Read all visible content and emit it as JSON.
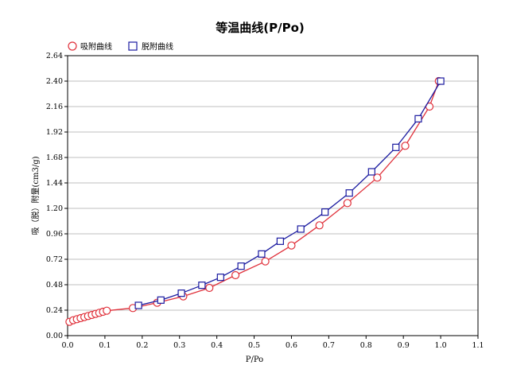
{
  "chart_data": {
    "type": "line",
    "title": "等温曲线(P/Po)",
    "xlabel": "P/Po",
    "ylabel": "吸（脱）附量(cm3/g)",
    "xlim": [
      0.0,
      1.1
    ],
    "ylim": [
      0.0,
      2.64
    ],
    "x_ticks": [
      "0.0",
      "0.1",
      "0.2",
      "0.3",
      "0.4",
      "0.5",
      "0.6",
      "0.7",
      "0.8",
      "0.9",
      "1.0",
      "1.1"
    ],
    "x_tick_values": [
      0.0,
      0.1,
      0.2,
      0.3,
      0.4,
      0.5,
      0.6,
      0.7,
      0.8,
      0.9,
      1.0,
      1.1
    ],
    "y_ticks": [
      "0.00",
      "0.24",
      "0.48",
      "0.72",
      "0.96",
      "1.20",
      "1.44",
      "1.68",
      "1.92",
      "2.16",
      "2.40",
      "2.64"
    ],
    "y_tick_values": [
      0.0,
      0.24,
      0.48,
      0.72,
      0.96,
      1.2,
      1.44,
      1.68,
      1.92,
      2.16,
      2.4,
      2.64
    ],
    "grid": true,
    "legend_position": "top-left",
    "series": [
      {
        "name": "吸附曲线",
        "color": "#e0303a",
        "marker": "circle",
        "points": [
          [
            0.005,
            0.13
          ],
          [
            0.015,
            0.145
          ],
          [
            0.025,
            0.155
          ],
          [
            0.035,
            0.165
          ],
          [
            0.045,
            0.175
          ],
          [
            0.055,
            0.185
          ],
          [
            0.065,
            0.195
          ],
          [
            0.075,
            0.205
          ],
          [
            0.085,
            0.215
          ],
          [
            0.095,
            0.225
          ],
          [
            0.105,
            0.235
          ],
          [
            0.175,
            0.26
          ],
          [
            0.24,
            0.31
          ],
          [
            0.31,
            0.37
          ],
          [
            0.38,
            0.45
          ],
          [
            0.45,
            0.57
          ],
          [
            0.53,
            0.7
          ],
          [
            0.6,
            0.85
          ],
          [
            0.675,
            1.04
          ],
          [
            0.75,
            1.25
          ],
          [
            0.83,
            1.49
          ],
          [
            0.905,
            1.79
          ],
          [
            0.97,
            2.16
          ],
          [
            0.995,
            2.4
          ]
        ]
      },
      {
        "name": "脱附曲线",
        "color": "#1a1aa0",
        "marker": "square",
        "points": [
          [
            0.19,
            0.285
          ],
          [
            0.25,
            0.335
          ],
          [
            0.305,
            0.4
          ],
          [
            0.36,
            0.475
          ],
          [
            0.41,
            0.55
          ],
          [
            0.465,
            0.655
          ],
          [
            0.52,
            0.77
          ],
          [
            0.57,
            0.89
          ],
          [
            0.625,
            1.005
          ],
          [
            0.69,
            1.165
          ],
          [
            0.755,
            1.345
          ],
          [
            0.815,
            1.545
          ],
          [
            0.88,
            1.775
          ],
          [
            0.94,
            2.045
          ],
          [
            1.0,
            2.4
          ]
        ]
      }
    ]
  }
}
